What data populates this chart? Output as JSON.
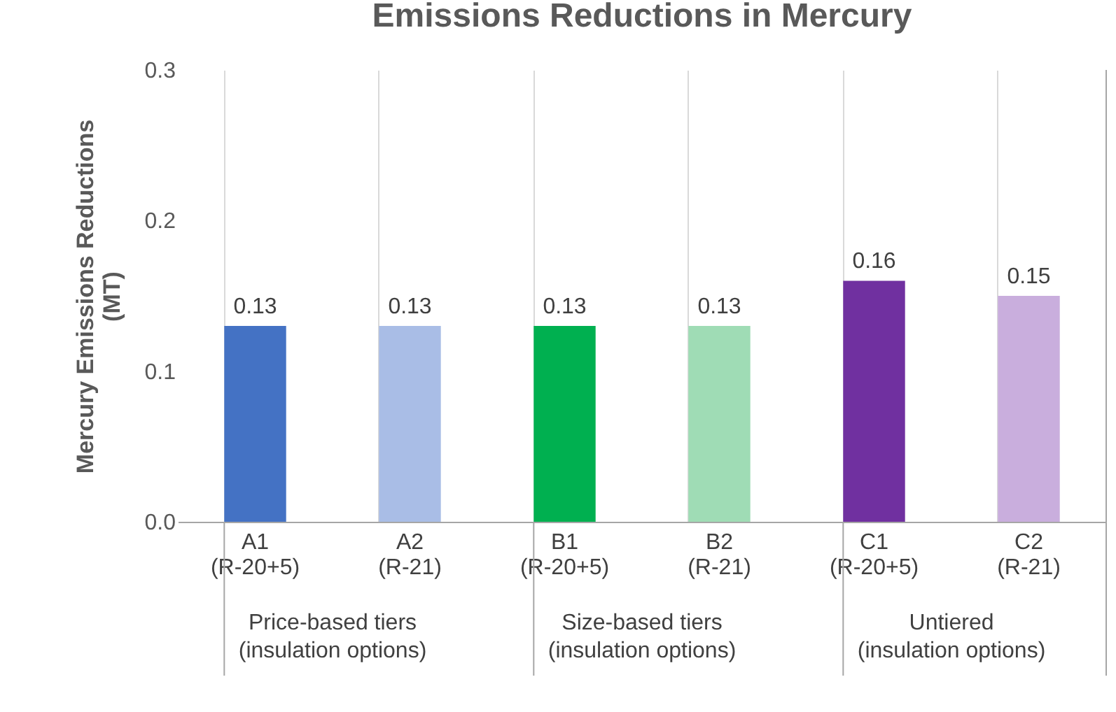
{
  "chart_data": {
    "type": "bar",
    "title": "Emissions Reductions in Mercury",
    "ylabel": "Mercury Emissions Reductions\n(MT)",
    "categories": [
      "A1\n(R-20+5)",
      "A2\n(R-21)",
      "B1\n(R-20+5)",
      "B2\n(R-21)",
      "C1\n(R-20+5)",
      "C2\n(R-21)"
    ],
    "values": [
      0.13,
      0.13,
      0.13,
      0.13,
      0.16,
      0.15
    ],
    "colors": [
      "#4472c4",
      "#a9bde6",
      "#00b050",
      "#9fdcb5",
      "#7030a0",
      "#c9aedd"
    ],
    "data_labels": true,
    "ylim": [
      0,
      0.3
    ],
    "yticks": [
      {
        "value": 0,
        "label": "0.0"
      },
      0.1,
      0.2,
      0.3
    ],
    "grid": "x",
    "annotations": [
      "Price-based tiers\n(insulation options)",
      "Size-based tiers\n(insulation options)",
      "Untiered\n(insulation options)"
    ]
  }
}
